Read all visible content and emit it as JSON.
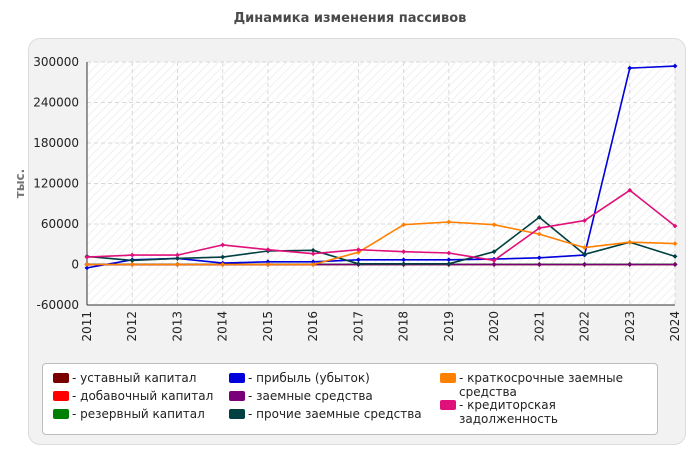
{
  "title": "Динамика изменения пассивов",
  "chart_data": {
    "type": "line",
    "title": "Динамика изменения пассивов",
    "xlabel": "",
    "ylabel": "тыс.",
    "ylim": [
      -60000,
      300000
    ],
    "yticks": [
      "300000",
      "240000",
      "180000",
      "120000",
      "60000",
      "0",
      "-60000"
    ],
    "categories": [
      "2011",
      "2012",
      "2013",
      "2014",
      "2015",
      "2016",
      "2017",
      "2018",
      "2019",
      "2020",
      "2021",
      "2022",
      "2023",
      "2024"
    ],
    "grid": true,
    "legend_position": "bottom",
    "series": [
      {
        "name": "уставный капитал",
        "color": "#7a0000",
        "values": [
          100,
          100,
          100,
          100,
          100,
          100,
          100,
          100,
          100,
          100,
          100,
          100,
          100,
          100
        ]
      },
      {
        "name": "добавочный капитал",
        "color": "#ff0000",
        "values": [
          0,
          0,
          0,
          0,
          0,
          0,
          0,
          0,
          0,
          0,
          0,
          0,
          0,
          0
        ]
      },
      {
        "name": "резервный капитал",
        "color": "#008000",
        "values": [
          300,
          300,
          300,
          300,
          300,
          300,
          300,
          300,
          300,
          300,
          300,
          300,
          300,
          300
        ]
      },
      {
        "name": "прибыль (убыток)",
        "color": "#0000dd",
        "values": [
          -5000,
          7000,
          9000,
          2000,
          4000,
          4000,
          7000,
          7000,
          7000,
          8000,
          10000,
          14000,
          291000,
          294000
        ]
      },
      {
        "name": "заемные средства",
        "color": "#7a007a",
        "values": [
          0,
          0,
          0,
          0,
          0,
          0,
          0,
          0,
          0,
          0,
          0,
          0,
          0,
          0
        ]
      },
      {
        "name": "прочие заемные средства",
        "color": "#004040",
        "values": [
          12000,
          6000,
          9000,
          11000,
          20000,
          21000,
          1000,
          1000,
          1000,
          19000,
          70000,
          15000,
          33000,
          12000
        ]
      },
      {
        "name": "краткосрочные заемные средства",
        "color": "#ff8000",
        "values": [
          0,
          0,
          0,
          0,
          0,
          0,
          18000,
          59000,
          63000,
          59000,
          45000,
          25000,
          33000,
          31000
        ]
      },
      {
        "name": "кредиторская задолженность",
        "color": "#e0107a",
        "values": [
          11000,
          14000,
          14000,
          29000,
          22000,
          16000,
          22000,
          19000,
          17000,
          6000,
          54000,
          65000,
          110000,
          57000
        ]
      }
    ]
  },
  "legend": {
    "items": [
      {
        "label": "- уставный капитал",
        "color": "#7a0000"
      },
      {
        "label": "- добавочный капитал",
        "color": "#ff0000"
      },
      {
        "label": "- резервный капитал",
        "color": "#008000"
      },
      {
        "label": "- прибыль (убыток)",
        "color": "#0000dd"
      },
      {
        "label": "- заемные средства",
        "color": "#7a007a"
      },
      {
        "label": "- прочие заемные средства",
        "color": "#004040"
      },
      {
        "label": "- краткосрочные заемные средства",
        "color": "#ff8000"
      },
      {
        "label": "- кредиторская задолженность",
        "color": "#e0107a"
      }
    ]
  }
}
